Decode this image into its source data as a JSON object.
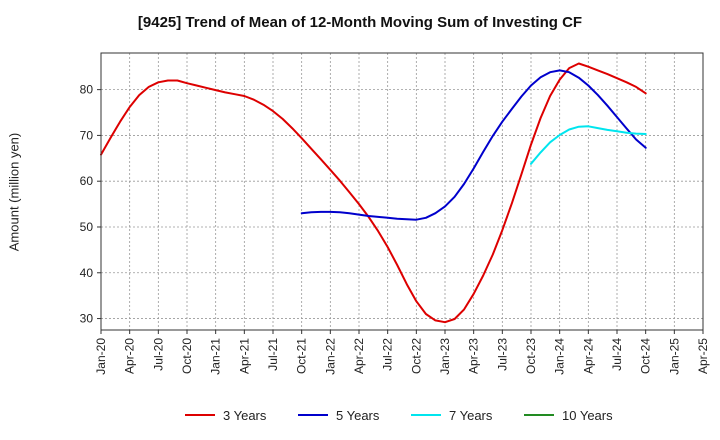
{
  "chart_data": {
    "type": "line",
    "title": "[9425]  Trend of Mean of 12-Month Moving Sum of Investing CF",
    "xlabel": "",
    "ylabel": "Amount (million yen)",
    "x_tick_labels": [
      "Jan-20",
      "Apr-20",
      "Jul-20",
      "Oct-20",
      "Jan-21",
      "Apr-21",
      "Jul-21",
      "Oct-21",
      "Jan-22",
      "Apr-22",
      "Jul-22",
      "Oct-22",
      "Jan-23",
      "Apr-23",
      "Jul-23",
      "Oct-23",
      "Jan-24",
      "Apr-24",
      "Jul-24",
      "Oct-24",
      "Jan-25",
      "Apr-25"
    ],
    "y_ticks": [
      30,
      40,
      50,
      60,
      70,
      80
    ],
    "ylim": [
      27.5,
      88
    ],
    "grid": true,
    "legend_position": "bottom",
    "series": [
      {
        "name": "3 Years",
        "color": "#dd0000",
        "x": [
          "Jan-20",
          "Feb-20",
          "Mar-20",
          "Apr-20",
          "May-20",
          "Jun-20",
          "Jul-20",
          "Aug-20",
          "Sep-20",
          "Oct-20",
          "Nov-20",
          "Dec-20",
          "Jan-21",
          "Feb-21",
          "Mar-21",
          "Apr-21",
          "May-21",
          "Jun-21",
          "Jul-21",
          "Aug-21",
          "Sep-21",
          "Oct-21",
          "Nov-21",
          "Dec-21",
          "Jan-22",
          "Feb-22",
          "Mar-22",
          "Apr-22",
          "May-22",
          "Jun-22",
          "Jul-22",
          "Aug-22",
          "Sep-22",
          "Oct-22",
          "Nov-22",
          "Dec-22",
          "Jan-23",
          "Feb-23",
          "Mar-23",
          "Apr-23",
          "May-23",
          "Jun-23",
          "Jul-23",
          "Aug-23",
          "Sep-23",
          "Oct-23",
          "Nov-23",
          "Dec-23",
          "Jan-24",
          "Feb-24",
          "Mar-24",
          "Apr-24",
          "May-24",
          "Jun-24",
          "Jul-24",
          "Aug-24",
          "Sep-24",
          "Oct-24"
        ],
        "values": [
          65.8,
          69.5,
          73.0,
          76.2,
          78.8,
          80.6,
          81.6,
          82.0,
          82.0,
          81.4,
          80.9,
          80.4,
          79.9,
          79.4,
          79.0,
          78.6,
          77.8,
          76.7,
          75.3,
          73.6,
          71.6,
          69.4,
          67.1,
          64.8,
          62.5,
          60.1,
          57.6,
          55.0,
          52.2,
          49.1,
          45.6,
          41.7,
          37.5,
          33.8,
          31.0,
          29.6,
          29.2,
          29.9,
          32.0,
          35.4,
          39.4,
          44.0,
          49.3,
          55.2,
          61.5,
          68.0,
          73.8,
          78.6,
          82.2,
          84.7,
          85.7,
          85.0,
          84.2,
          83.4,
          82.5,
          81.6,
          80.6,
          79.2
        ]
      },
      {
        "name": "5 Years",
        "color": "#0000cc",
        "x": [
          "Oct-21",
          "Nov-21",
          "Dec-21",
          "Jan-22",
          "Feb-22",
          "Mar-22",
          "Apr-22",
          "May-22",
          "Jun-22",
          "Jul-22",
          "Aug-22",
          "Sep-22",
          "Oct-22",
          "Nov-22",
          "Dec-22",
          "Jan-23",
          "Feb-23",
          "Mar-23",
          "Apr-23",
          "May-23",
          "Jun-23",
          "Jul-23",
          "Aug-23",
          "Sep-23",
          "Oct-23",
          "Nov-23",
          "Dec-23",
          "Jan-24",
          "Feb-24",
          "Mar-24",
          "Apr-24",
          "May-24",
          "Jun-24",
          "Jul-24",
          "Aug-24",
          "Sep-24",
          "Oct-24"
        ],
        "values": [
          53.0,
          53.2,
          53.3,
          53.3,
          53.2,
          53.0,
          52.7,
          52.4,
          52.2,
          52.0,
          51.8,
          51.7,
          51.6,
          52.0,
          53.0,
          54.5,
          56.6,
          59.4,
          62.8,
          66.4,
          69.9,
          73.0,
          75.8,
          78.5,
          80.9,
          82.7,
          83.8,
          84.2,
          83.8,
          82.6,
          80.9,
          78.8,
          76.5,
          74.0,
          71.5,
          69.1,
          67.3
        ]
      },
      {
        "name": "7 Years",
        "color": "#00e5ee",
        "x": [
          "Oct-23",
          "Nov-23",
          "Dec-23",
          "Jan-24",
          "Feb-24",
          "Mar-24",
          "Apr-24",
          "May-24",
          "Jun-24",
          "Jul-24",
          "Aug-24",
          "Sep-24",
          "Oct-24"
        ],
        "values": [
          63.8,
          66.3,
          68.5,
          70.1,
          71.3,
          71.9,
          72.0,
          71.6,
          71.2,
          70.9,
          70.6,
          70.4,
          70.3
        ]
      },
      {
        "name": "10 Years",
        "color": "#228b22",
        "x": [],
        "values": []
      }
    ]
  }
}
